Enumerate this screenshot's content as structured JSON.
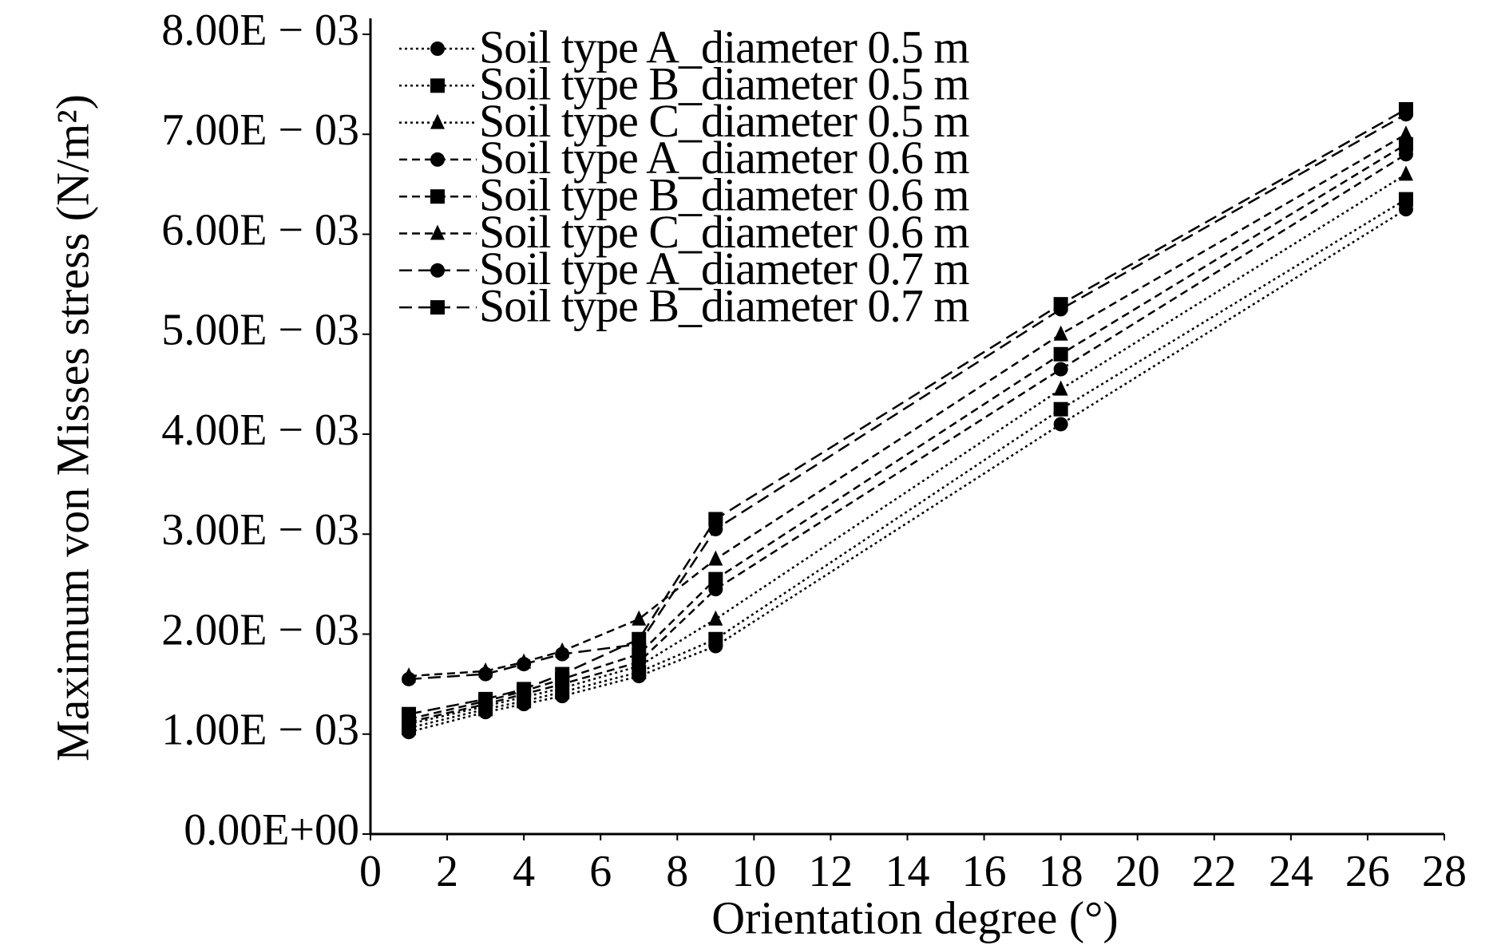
{
  "chart_data": {
    "type": "line",
    "x_label": "Orientation degree (°)",
    "y_label": "Maximum von Misses stress (N/m²)",
    "x": [
      1,
      3,
      4,
      5,
      7,
      9,
      18,
      27
    ],
    "xlim": [
      0,
      28
    ],
    "xticks": [
      0,
      2,
      4,
      6,
      8,
      10,
      12,
      14,
      16,
      18,
      20,
      22,
      24,
      26,
      28
    ],
    "ylim": [
      0,
      0.008
    ],
    "yticks": [
      {
        "value": 0,
        "label": "0.00E+00"
      },
      {
        "value": 0.001,
        "label": "1.00E − 03"
      },
      {
        "value": 0.002,
        "label": "2.00E − 03"
      },
      {
        "value": 0.003,
        "label": "3.00E − 03"
      },
      {
        "value": 0.004,
        "label": "4.00E − 03"
      },
      {
        "value": 0.005,
        "label": "5.00E − 03"
      },
      {
        "value": 0.006,
        "label": "6.00E − 03"
      },
      {
        "value": 0.007,
        "label": "7.00E − 03"
      },
      {
        "value": 0.008,
        "label": "8.00E − 03"
      }
    ],
    "grid": false,
    "legend": "top-left",
    "series": [
      {
        "name": "Soil type A_diameter 0.5 m",
        "color": "#000000",
        "marker": "circle",
        "linestyle": "dotted",
        "values": [
          0.00102,
          0.00122,
          0.0013,
          0.00138,
          0.00158,
          0.00188,
          0.0041,
          0.00625
        ]
      },
      {
        "name": "Soil type B_diameter 0.5 m",
        "color": "#000000",
        "marker": "square",
        "linestyle": "dotted",
        "values": [
          0.00106,
          0.00125,
          0.00133,
          0.00142,
          0.00162,
          0.00195,
          0.00425,
          0.00635
        ]
      },
      {
        "name": "Soil type C_diameter 0.5 m",
        "color": "#000000",
        "marker": "triangle",
        "linestyle": "dotted",
        "values": [
          0.0011,
          0.00128,
          0.00137,
          0.00146,
          0.00168,
          0.00215,
          0.00445,
          0.0066
        ]
      },
      {
        "name": "Soil type A_diameter 0.6 m",
        "color": "#000000",
        "marker": "circle",
        "linestyle": "dashed",
        "values": [
          0.00112,
          0.0013,
          0.0014,
          0.0015,
          0.00172,
          0.00245,
          0.00465,
          0.0068
        ]
      },
      {
        "name": "Soil type B_diameter 0.6 m",
        "color": "#000000",
        "marker": "square",
        "linestyle": "dashed",
        "values": [
          0.00115,
          0.00133,
          0.00143,
          0.00155,
          0.0018,
          0.00255,
          0.0048,
          0.0069
        ]
      },
      {
        "name": "Soil type C_diameter 0.6 m",
        "color": "#000000",
        "marker": "triangle",
        "linestyle": "dashed",
        "values": [
          0.00158,
          0.00163,
          0.00172,
          0.00183,
          0.00215,
          0.00275,
          0.005,
          0.007
        ]
      },
      {
        "name": "Soil type A_diameter 0.7 m",
        "color": "#000000",
        "marker": "circle",
        "linestyle": "longdash",
        "values": [
          0.00155,
          0.0016,
          0.0017,
          0.0018,
          0.0019,
          0.00305,
          0.00525,
          0.0072
        ]
      },
      {
        "name": "Soil type B_diameter 0.7 m",
        "color": "#000000",
        "marker": "square",
        "linestyle": "longdash",
        "values": [
          0.0012,
          0.00135,
          0.00145,
          0.0016,
          0.00195,
          0.00315,
          0.0053,
          0.00725
        ]
      }
    ]
  }
}
